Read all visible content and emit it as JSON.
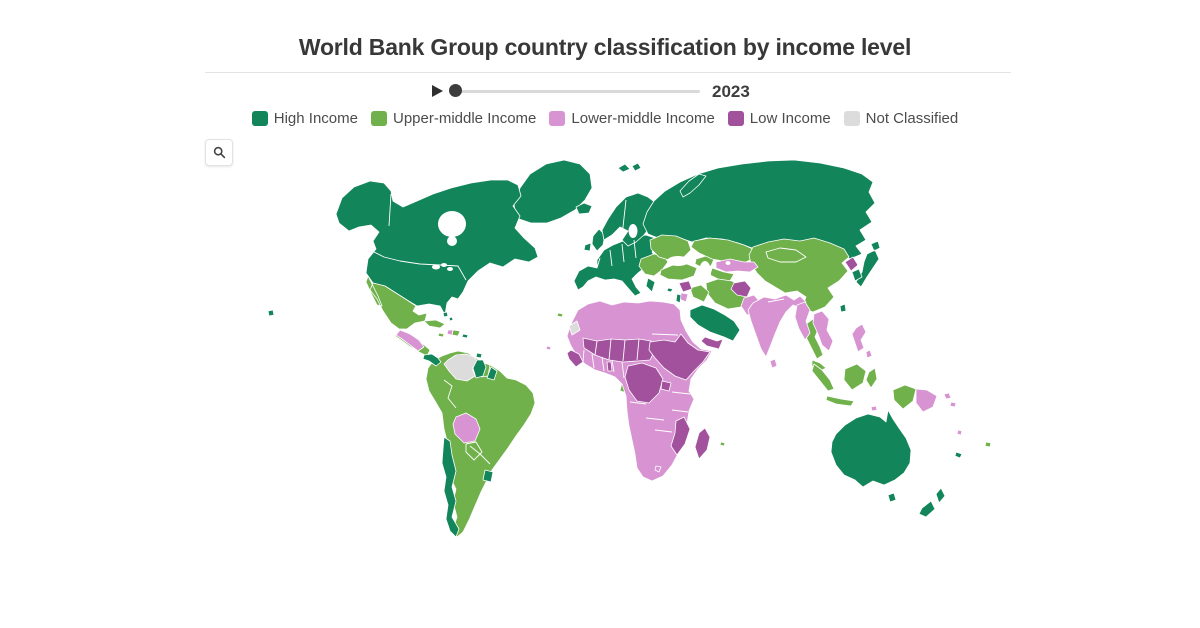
{
  "header": {
    "title": "World Bank Group country classification by income level"
  },
  "controls": {
    "year": "2023",
    "play_icon": "play-triangle"
  },
  "toolbar": {
    "zoom_icon": "magnifier"
  },
  "legend": {
    "items": [
      {
        "id": "high",
        "label": "High Income",
        "color": "#12855a"
      },
      {
        "id": "upper_middle",
        "label": "Upper-middle Income",
        "color": "#70b14b"
      },
      {
        "id": "lower_middle",
        "label": "Lower-middle Income",
        "color": "#d893d2"
      },
      {
        "id": "low",
        "label": "Low Income",
        "color": "#a2519c"
      },
      {
        "id": "not_classified",
        "label": "Not Classified",
        "color": "#dcdcdc"
      }
    ]
  },
  "chart_data": {
    "type": "choropleth",
    "title": "World Bank Group country classification by income level",
    "year": "2023",
    "legend_position": "top",
    "categories": [
      "High Income",
      "Upper-middle Income",
      "Lower-middle Income",
      "Low Income",
      "Not Classified"
    ],
    "category_colors": {
      "High Income": "#12855a",
      "Upper-middle Income": "#70b14b",
      "Lower-middle Income": "#d893d2",
      "Low Income": "#a2519c",
      "Not Classified": "#dcdcdc"
    },
    "classification": {
      "high_income": [
        "United States",
        "Canada",
        "Greenland",
        "Panama",
        "Chile",
        "Uruguay",
        "Guyana",
        "French Guiana",
        "Puerto Rico",
        "Bahamas",
        "Trinidad and Tobago",
        "Iceland",
        "United Kingdom",
        "Ireland",
        "France",
        "Spain",
        "Portugal",
        "Germany",
        "Italy",
        "Greece",
        "Poland",
        "Czechia",
        "Austria",
        "Switzerland",
        "Netherlands",
        "Belgium",
        "Denmark",
        "Norway",
        "Sweden",
        "Finland",
        "Estonia",
        "Latvia",
        "Lithuania",
        "Hungary",
        "Slovakia",
        "Slovenia",
        "Croatia",
        "Russia",
        "Cyprus",
        "Israel",
        "Saudi Arabia",
        "United Arab Emirates",
        "Qatar",
        "Kuwait",
        "Bahrain",
        "Oman",
        "Japan",
        "South Korea",
        "Taiwan",
        "Singapore",
        "Brunei",
        "Australia",
        "New Zealand",
        "New Caledonia"
      ],
      "upper_middle_income": [
        "Mexico",
        "Cuba",
        "Dominican Republic",
        "Jamaica",
        "Belize",
        "Costa Rica",
        "Colombia",
        "Ecuador",
        "Peru",
        "Brazil",
        "Paraguay",
        "Argentina",
        "Suriname",
        "Serbia",
        "Bosnia and Herzegovina",
        "Albania",
        "North Macedonia",
        "Montenegro",
        "Bulgaria",
        "Romania",
        "Moldova",
        "Ukraine",
        "Belarus",
        "Turkey",
        "Georgia",
        "Armenia",
        "Azerbaijan",
        "Kazakhstan",
        "Turkmenistan",
        "China",
        "Mongolia",
        "Thailand",
        "Malaysia",
        "Indonesia",
        "Fiji",
        "Iraq",
        "Iran",
        "Algeria",
        "Libya",
        "Gabon",
        "Equatorial Guinea",
        "Botswana",
        "Namibia",
        "South Africa",
        "Mauritius"
      ],
      "lower_middle_income": [
        "Bolivia",
        "Guatemala",
        "Honduras",
        "Nicaragua",
        "El Salvador",
        "Haiti",
        "Morocco",
        "Tunisia",
        "Egypt",
        "Mauritania",
        "Senegal",
        "Ivory Coast",
        "Ghana",
        "Nigeria",
        "Cameroon",
        "Republic of the Congo",
        "Angola",
        "Zambia",
        "Zimbabwe",
        "Kenya",
        "Tanzania",
        "Lesotho",
        "Eswatini",
        "Cape Verde",
        "India",
        "Pakistan",
        "Bangladesh",
        "Nepal",
        "Bhutan",
        "Sri Lanka",
        "Myanmar",
        "Cambodia",
        "Laos",
        "Vietnam",
        "Philippines",
        "Papua New Guinea",
        "Timor-Leste",
        "Solomon Islands",
        "Vanuatu",
        "Uzbekistan",
        "Kyrgyzstan",
        "Tajikistan",
        "Jordan",
        "Lebanon"
      ],
      "low_income": [
        "Afghanistan",
        "Yemen",
        "Syria",
        "North Korea",
        "Mali",
        "Niger",
        "Chad",
        "Sudan",
        "South Sudan",
        "Burkina Faso",
        "Guinea",
        "Guinea-Bissau",
        "Sierra Leone",
        "Liberia",
        "Togo",
        "Central African Republic",
        "Democratic Republic of the Congo",
        "Ethiopia",
        "Eritrea",
        "Somalia",
        "Uganda",
        "Rwanda",
        "Burundi",
        "Malawi",
        "Mozambique",
        "Madagascar",
        "Gambia"
      ],
      "not_classified": [
        "Venezuela",
        "Western Sahara"
      ]
    }
  }
}
